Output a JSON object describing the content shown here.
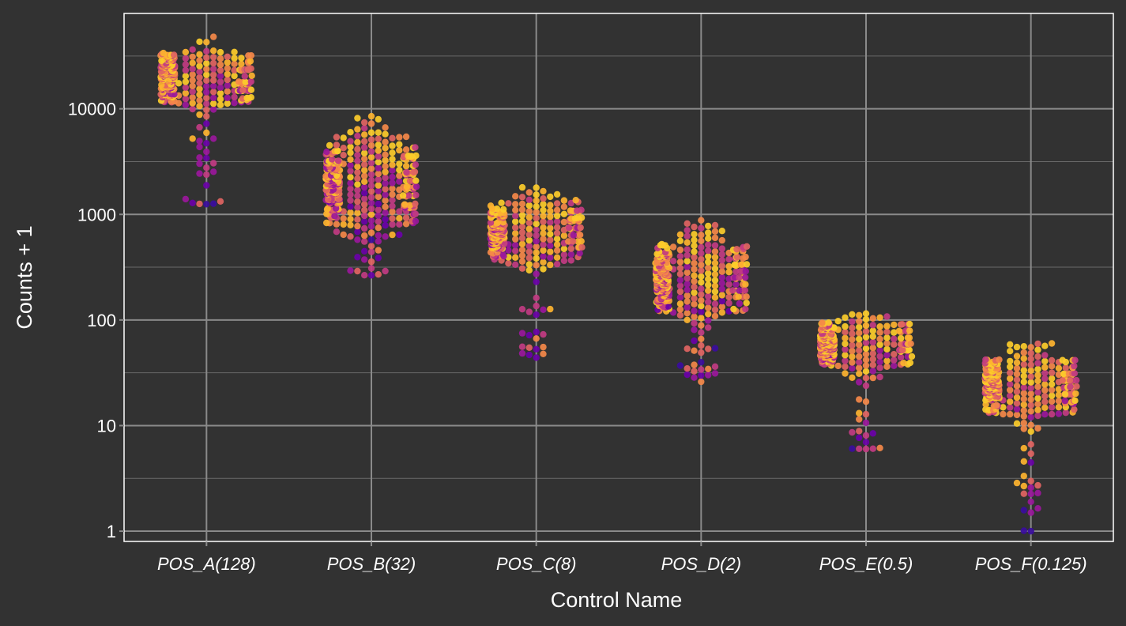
{
  "chart_data": {
    "type": "scatter",
    "subtype": "beeswarm",
    "title": "",
    "xlabel": "Control Name",
    "ylabel": "Counts + 1",
    "y_scale": "log10",
    "ylim": [
      0.8,
      80000
    ],
    "y_ticks": [
      1,
      10,
      100,
      1000,
      10000
    ],
    "y_tick_labels": [
      "1",
      "10",
      "100",
      "1000",
      "10000"
    ],
    "categories": [
      "POS_A(128)",
      "POS_B(32)",
      "POS_C(8)",
      "POS_D(2)",
      "POS_E(0.5)",
      "POS_F(0.125)"
    ],
    "grid": true,
    "legend": "none",
    "colors": {
      "background": "#323232",
      "panel_border": "#ffffff",
      "grid_major": "#8a8a8a",
      "grid_minor": "#6a6a6a",
      "palette": [
        "#3a0c9e",
        "#6a00a8",
        "#9a179b",
        "#c13b82",
        "#e16462",
        "#f48849",
        "#fdb32f",
        "#fccc2a"
      ]
    },
    "series": [
      {
        "category": "POS_A(128)",
        "median": 20000,
        "min": 1250,
        "max": 48000,
        "points": 420
      },
      {
        "category": "POS_B(32)",
        "median": 2000,
        "min": 265,
        "max": 8500,
        "points": 420
      },
      {
        "category": "POS_C(8)",
        "median": 700,
        "min": 44,
        "max": 1800,
        "points": 420
      },
      {
        "category": "POS_D(2)",
        "median": 250,
        "min": 26,
        "max": 880,
        "points": 420
      },
      {
        "category": "POS_E(0.5)",
        "median": 60,
        "min": 6,
        "max": 115,
        "points": 420
      },
      {
        "category": "POS_F(0.125)",
        "median": 25,
        "min": 1,
        "max": 60,
        "points": 420
      }
    ]
  }
}
